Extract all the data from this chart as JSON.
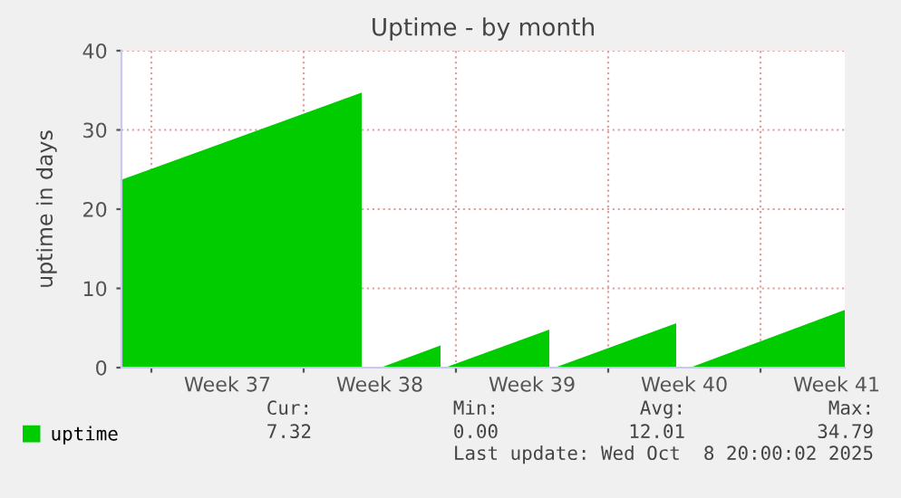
{
  "chart_data": {
    "type": "area",
    "title": "Uptime - by month",
    "ylabel": "uptime in days",
    "series": [
      {
        "name": "uptime",
        "color": "#00cc00",
        "x": [
          "2025-09-06T15:00",
          "2025-09-17T16:00",
          "2025-09-17T16:00",
          "2025-09-17T18:00",
          "2025-09-18T13:00",
          "2025-09-21T07:00",
          "2025-09-21T07:00",
          "2025-09-21T08:00",
          "2025-09-21T12:00",
          "2025-09-26T07:00",
          "2025-09-26T07:00",
          "2025-09-26T08:00",
          "2025-09-26T13:00",
          "2025-10-02T03:00",
          "2025-10-02T03:00",
          "2025-10-02T04:00",
          "2025-10-02T18:00",
          "2025-10-09T21:00"
        ],
        "values": [
          23.7,
          34.7,
          0,
          null,
          0,
          2.8,
          0,
          null,
          0,
          4.8,
          0,
          null,
          0,
          5.6,
          0,
          null,
          0,
          7.3
        ]
      }
    ],
    "xlim": [
      "2025-09-06T15:00",
      "2025-10-09T21:00"
    ],
    "xticks": [
      {
        "value": "2025-09-08",
        "label": null
      },
      {
        "value": "2025-09-11T12:00",
        "label": "Week 37"
      },
      {
        "value": "2025-09-15",
        "label": null
      },
      {
        "value": "2025-09-18T12:00",
        "label": "Week 38"
      },
      {
        "value": "2025-09-22",
        "label": null
      },
      {
        "value": "2025-09-25T12:00",
        "label": "Week 39"
      },
      {
        "value": "2025-09-29",
        "label": null
      },
      {
        "value": "2025-10-02T12:00",
        "label": "Week 40"
      },
      {
        "value": "2025-10-06",
        "label": null
      },
      {
        "value": "2025-10-09T12:00",
        "label": "Week 41"
      }
    ],
    "ylim": [
      0,
      40
    ],
    "yticks": [
      0,
      10,
      20,
      30,
      40
    ],
    "grid": true,
    "legend": "bottom",
    "annotations": [
      "Cur:",
      "Min:",
      "Avg:",
      "Max:",
      "7.32",
      "0.00",
      "12.01",
      "34.79",
      "Last update: Wed Oct  8 20:00:02 2025"
    ]
  }
}
